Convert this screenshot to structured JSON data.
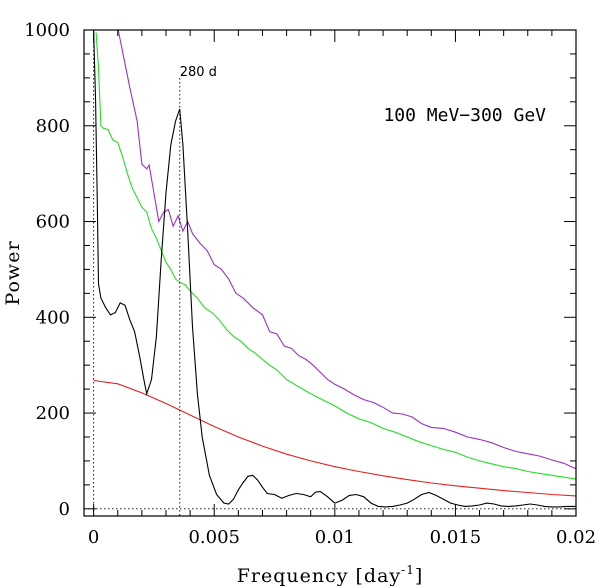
{
  "chart_data": {
    "type": "line",
    "xlabel_main": "Frequency [day",
    "xlabel_sup": "-1",
    "xlabel_close": "]",
    "ylabel": "Power",
    "annotation": "100 MeV−300 GeV",
    "peak_label": "280 d",
    "peak_frequency": 0.00357,
    "xlim": [
      -0.0004,
      0.02
    ],
    "ylim": [
      -15,
      1000
    ],
    "x_ticks": [
      0,
      0.005,
      0.01,
      0.015,
      0.02
    ],
    "x_tick_labels": [
      "0",
      "0.005",
      "0.01",
      "0.015",
      "0.02"
    ],
    "y_ticks": [
      0,
      200,
      400,
      600,
      800,
      1000
    ],
    "y_tick_labels": [
      "0",
      "200",
      "400",
      "600",
      "800",
      "1000"
    ],
    "grid": false,
    "series": [
      {
        "color": "#9b30c8",
        "x": [
          0.00102,
          0.0015,
          0.0018,
          0.002,
          0.0022,
          0.0023,
          0.0025,
          0.0027,
          0.0029,
          0.0031,
          0.0033,
          0.0035,
          0.0037,
          0.0039,
          0.0041,
          0.0044,
          0.0047,
          0.005,
          0.0053,
          0.0056,
          0.0059,
          0.0062,
          0.0066,
          0.007,
          0.0073,
          0.0076,
          0.0079,
          0.0082,
          0.0085,
          0.0088,
          0.0091,
          0.0094,
          0.0097,
          0.01,
          0.0104,
          0.0108,
          0.0112,
          0.0116,
          0.012,
          0.0124,
          0.0128,
          0.0132,
          0.0136,
          0.014,
          0.0145,
          0.015,
          0.0155,
          0.016,
          0.0165,
          0.017,
          0.0175,
          0.018,
          0.0185,
          0.019,
          0.0195,
          0.0198,
          0.02
        ],
        "y": [
          1000,
          880,
          810,
          720,
          710,
          718,
          660,
          600,
          620,
          625,
          590,
          612,
          580,
          600,
          575,
          555,
          540,
          510,
          500,
          480,
          450,
          440,
          420,
          405,
          370,
          365,
          340,
          335,
          320,
          312,
          300,
          285,
          270,
          260,
          250,
          238,
          228,
          222,
          212,
          200,
          198,
          192,
          178,
          170,
          168,
          160,
          150,
          145,
          138,
          128,
          120,
          115,
          110,
          102,
          95,
          88,
          84
        ]
      },
      {
        "color": "#22e022",
        "x": [
          0.0001,
          0.0002,
          0.0003,
          0.0004,
          0.0006,
          0.0008,
          0.001,
          0.0012,
          0.0014,
          0.0016,
          0.0018,
          0.002,
          0.0022,
          0.0024,
          0.0026,
          0.0028,
          0.003,
          0.0032,
          0.0034,
          0.0036,
          0.0038,
          0.004,
          0.0043,
          0.0046,
          0.0049,
          0.0052,
          0.0055,
          0.0058,
          0.0061,
          0.0064,
          0.0067,
          0.007,
          0.0073,
          0.0076,
          0.008,
          0.0084,
          0.0088,
          0.0092,
          0.0096,
          0.01,
          0.0105,
          0.011,
          0.0115,
          0.012,
          0.0125,
          0.013,
          0.0135,
          0.014,
          0.0145,
          0.015,
          0.0155,
          0.016,
          0.0165,
          0.017,
          0.0175,
          0.018,
          0.0185,
          0.019,
          0.0195,
          0.02
        ],
        "y": [
          995,
          920,
          800,
          795,
          792,
          770,
          765,
          735,
          700,
          670,
          650,
          630,
          620,
          585,
          565,
          540,
          515,
          500,
          480,
          472,
          468,
          455,
          440,
          420,
          410,
          395,
          375,
          360,
          350,
          335,
          325,
          312,
          300,
          290,
          270,
          258,
          246,
          235,
          225,
          215,
          200,
          188,
          180,
          168,
          160,
          150,
          140,
          132,
          124,
          118,
          108,
          100,
          94,
          88,
          84,
          78,
          74,
          70,
          66,
          62
        ]
      },
      {
        "color": "#e82020",
        "x": [
          0,
          0.001,
          0.002,
          0.003,
          0.004,
          0.005,
          0.006,
          0.007,
          0.008,
          0.009,
          0.01,
          0.011,
          0.012,
          0.013,
          0.014,
          0.015,
          0.016,
          0.017,
          0.018,
          0.019,
          0.02
        ],
        "y": [
          268,
          261,
          242,
          220,
          196,
          172,
          150,
          131,
          114,
          100,
          88,
          78,
          69,
          61,
          54,
          48,
          43,
          38,
          34,
          30,
          27
        ]
      },
      {
        "color": "#000000",
        "x": [
          0.0,
          8e-05,
          0.00015,
          0.0002,
          0.0003,
          0.0005,
          0.0007,
          0.0009,
          0.0011,
          0.0013,
          0.0015,
          0.0017,
          0.0019,
          0.0021,
          0.0022,
          0.0024,
          0.0026,
          0.0028,
          0.003,
          0.0032,
          0.0034,
          0.00357,
          0.0037,
          0.0039,
          0.0041,
          0.0043,
          0.0045,
          0.0048,
          0.0051,
          0.0054,
          0.0056,
          0.0058,
          0.006,
          0.0062,
          0.0064,
          0.0066,
          0.0068,
          0.007,
          0.0072,
          0.0075,
          0.0078,
          0.0081,
          0.0084,
          0.0087,
          0.009,
          0.0092,
          0.0094,
          0.0097,
          0.01,
          0.0103,
          0.0106,
          0.0109,
          0.0112,
          0.0115,
          0.0118,
          0.0121,
          0.0124,
          0.0127,
          0.013,
          0.0133,
          0.0136,
          0.0139,
          0.0142,
          0.0145,
          0.0148,
          0.0151,
          0.0154,
          0.0157,
          0.016,
          0.0163,
          0.0166,
          0.0169,
          0.0172,
          0.0175,
          0.0178,
          0.0181,
          0.0184,
          0.0187,
          0.019,
          0.0193,
          0.0196,
          0.02
        ],
        "y": [
          1000,
          850,
          640,
          470,
          440,
          420,
          405,
          410,
          430,
          425,
          395,
          370,
          320,
          265,
          240,
          270,
          360,
          520,
          660,
          760,
          810,
          835,
          760,
          580,
          380,
          240,
          150,
          70,
          30,
          12,
          10,
          20,
          40,
          55,
          68,
          70,
          60,
          45,
          32,
          30,
          22,
          28,
          32,
          30,
          25,
          35,
          36,
          25,
          12,
          18,
          28,
          30,
          25,
          12,
          5,
          4,
          5,
          8,
          12,
          20,
          30,
          34,
          28,
          20,
          12,
          8,
          5,
          6,
          8,
          12,
          10,
          6,
          5,
          6,
          8,
          10,
          8,
          5,
          4,
          4,
          5,
          5
        ]
      }
    ]
  }
}
